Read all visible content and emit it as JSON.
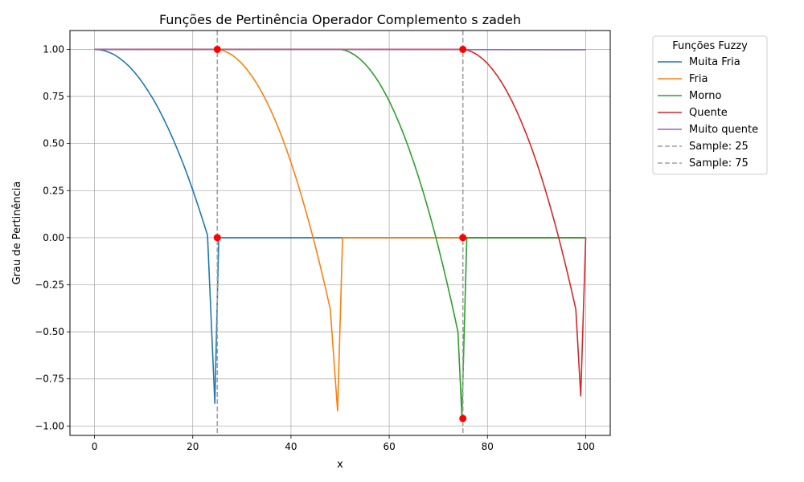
{
  "chart_data": {
    "type": "line",
    "title": "Funções de Pertinência Operador Complemento s zadeh",
    "xlabel": "x",
    "ylabel": "Grau de Pertinência",
    "xlim": [
      -5,
      105
    ],
    "ylim": [
      -1.05,
      1.1
    ],
    "x_ticks": [
      0,
      20,
      40,
      60,
      80,
      100
    ],
    "x_tick_labels": [
      "0",
      "20",
      "40",
      "60",
      "80",
      "100"
    ],
    "y_ticks": [
      -1.0,
      -0.75,
      -0.5,
      -0.25,
      0.0,
      0.25,
      0.5,
      0.75,
      1.0
    ],
    "y_tick_labels": [
      "−1.00",
      "−0.75",
      "−0.50",
      "−0.25",
      "0.00",
      "0.25",
      "0.50",
      "0.75",
      "1.00"
    ],
    "grid": true,
    "legend": {
      "title": "Funções Fuzzy",
      "position": "outside-top-right"
    },
    "series": [
      {
        "name": "Muita Fria",
        "color": "#1f77b4",
        "points": [
          [
            0,
            1.0
          ],
          [
            1,
            0.998
          ],
          [
            2,
            0.993
          ],
          [
            3,
            0.984
          ],
          [
            4,
            0.972
          ],
          [
            5,
            0.955
          ],
          [
            6,
            0.935
          ],
          [
            7,
            0.911
          ],
          [
            8,
            0.883
          ],
          [
            9,
            0.851
          ],
          [
            10,
            0.815
          ],
          [
            11,
            0.776
          ],
          [
            12,
            0.733
          ],
          [
            13,
            0.686
          ],
          [
            14,
            0.635
          ],
          [
            15,
            0.581
          ],
          [
            16,
            0.523
          ],
          [
            17,
            0.461
          ],
          [
            18,
            0.396
          ],
          [
            19,
            0.327
          ],
          [
            20,
            0.254
          ],
          [
            21,
            0.177
          ],
          [
            22,
            0.097
          ],
          [
            23,
            0.013
          ],
          [
            24.5,
            -0.88
          ],
          [
            25.3,
            0.0
          ],
          [
            50,
            0.0
          ],
          [
            75,
            0.0
          ],
          [
            100,
            0.0
          ]
        ]
      },
      {
        "name": "Fria",
        "color": "#ff7f0e",
        "points": [
          [
            0,
            1.0
          ],
          [
            25,
            1.0
          ],
          [
            26,
            0.995
          ],
          [
            27,
            0.985
          ],
          [
            28,
            0.97
          ],
          [
            29,
            0.95
          ],
          [
            30,
            0.925
          ],
          [
            31,
            0.895
          ],
          [
            32,
            0.86
          ],
          [
            33,
            0.82
          ],
          [
            34,
            0.775
          ],
          [
            35,
            0.725
          ],
          [
            36,
            0.67
          ],
          [
            37,
            0.61
          ],
          [
            38,
            0.545
          ],
          [
            39,
            0.475
          ],
          [
            40,
            0.4
          ],
          [
            41,
            0.32
          ],
          [
            42,
            0.235
          ],
          [
            43,
            0.145
          ],
          [
            44,
            0.05
          ],
          [
            45,
            -0.05
          ],
          [
            46,
            -0.155
          ],
          [
            47,
            -0.265
          ],
          [
            48,
            -0.38
          ],
          [
            49.5,
            -0.92
          ],
          [
            50.5,
            0.0
          ],
          [
            75,
            0.0
          ],
          [
            100,
            0.0
          ]
        ]
      },
      {
        "name": "Morno",
        "color": "#2ca02c",
        "points": [
          [
            0,
            1.0
          ],
          [
            50,
            1.0
          ],
          [
            51,
            0.995
          ],
          [
            52,
            0.985
          ],
          [
            53,
            0.97
          ],
          [
            54,
            0.95
          ],
          [
            55,
            0.925
          ],
          [
            56,
            0.895
          ],
          [
            57,
            0.86
          ],
          [
            58,
            0.82
          ],
          [
            59,
            0.775
          ],
          [
            60,
            0.725
          ],
          [
            61,
            0.67
          ],
          [
            62,
            0.61
          ],
          [
            63,
            0.545
          ],
          [
            64,
            0.475
          ],
          [
            65,
            0.4
          ],
          [
            66,
            0.32
          ],
          [
            67,
            0.235
          ],
          [
            68,
            0.145
          ],
          [
            69,
            0.05
          ],
          [
            70,
            -0.05
          ],
          [
            71,
            -0.155
          ],
          [
            72,
            -0.265
          ],
          [
            73,
            -0.38
          ],
          [
            74,
            -0.5
          ],
          [
            74.8,
            -0.95
          ],
          [
            75.8,
            0.0
          ],
          [
            100,
            0.0
          ]
        ]
      },
      {
        "name": "Quente",
        "color": "#d62728",
        "points": [
          [
            0,
            1.0
          ],
          [
            75,
            1.0
          ],
          [
            76,
            0.995
          ],
          [
            77,
            0.985
          ],
          [
            78,
            0.97
          ],
          [
            79,
            0.95
          ],
          [
            80,
            0.925
          ],
          [
            81,
            0.895
          ],
          [
            82,
            0.86
          ],
          [
            83,
            0.82
          ],
          [
            84,
            0.775
          ],
          [
            85,
            0.725
          ],
          [
            86,
            0.67
          ],
          [
            87,
            0.61
          ],
          [
            88,
            0.545
          ],
          [
            89,
            0.475
          ],
          [
            90,
            0.4
          ],
          [
            91,
            0.32
          ],
          [
            92,
            0.235
          ],
          [
            93,
            0.145
          ],
          [
            94,
            0.05
          ],
          [
            95,
            -0.05
          ],
          [
            96,
            -0.155
          ],
          [
            97,
            -0.265
          ],
          [
            98,
            -0.38
          ],
          [
            99,
            -0.84
          ],
          [
            100,
            0.0
          ]
        ]
      },
      {
        "name": "Muito quente",
        "color": "#9467bd",
        "points": [
          [
            0,
            1.0
          ],
          [
            50,
            0.9995
          ],
          [
            100,
            0.998
          ]
        ]
      }
    ],
    "reference_lines": [
      {
        "name": "Sample: 25",
        "x": 25,
        "color": "#a0a0a0",
        "style": "dashed"
      },
      {
        "name": "Sample: 75",
        "x": 75,
        "color": "#a0a0a0",
        "style": "dashed"
      }
    ],
    "sample_points": {
      "color": "#ff0000",
      "points": [
        [
          25,
          1.0
        ],
        [
          25,
          0.0
        ],
        [
          75,
          1.0
        ],
        [
          75,
          0.0
        ],
        [
          75,
          -0.96
        ]
      ]
    }
  }
}
